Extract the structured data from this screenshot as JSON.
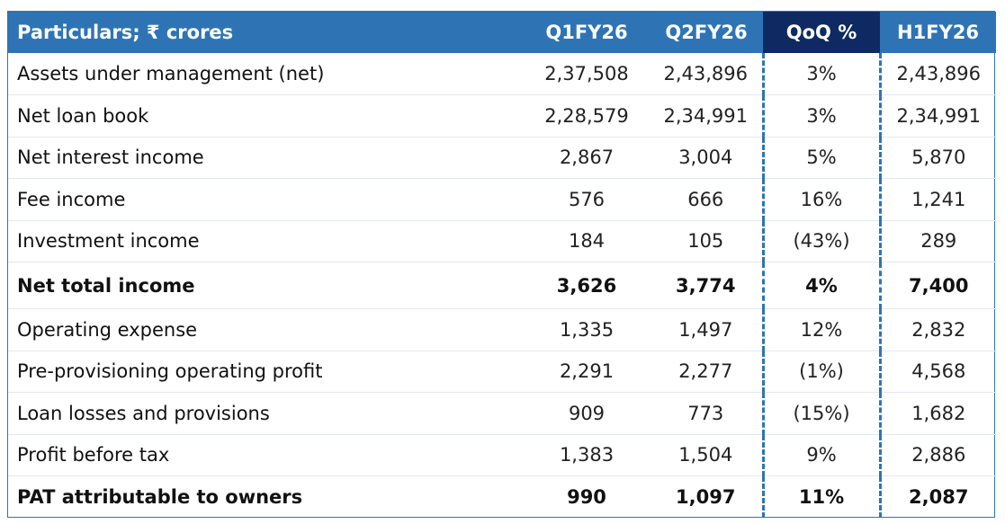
{
  "header": {
    "particulars": "Particulars; ₹ crores",
    "q1": "Q1FY26",
    "q2": "Q2FY26",
    "qoq": "QoQ %",
    "h1": "H1FY26"
  },
  "rows": [
    {
      "label": "Assets under management (net)",
      "q1": "2,37,508",
      "q2": "2,43,896",
      "qoq": "3%",
      "h1": "2,43,896"
    },
    {
      "label": "Net loan book",
      "q1": "2,28,579",
      "q2": "2,34,991",
      "qoq": "3%",
      "h1": "2,34,991"
    },
    {
      "label": "Net interest income",
      "q1": "2,867",
      "q2": "3,004",
      "qoq": "5%",
      "h1": "5,870"
    },
    {
      "label": "Fee income",
      "q1": "576",
      "q2": "666",
      "qoq": "16%",
      "h1": "1,241"
    },
    {
      "label": "Investment income",
      "q1": "184",
      "q2": "105",
      "qoq": "(43%)",
      "h1": "289"
    },
    {
      "label": "Net total income",
      "q1": "3,626",
      "q2": "3,774",
      "qoq": "4%",
      "h1": "7,400"
    },
    {
      "label": "Operating expense",
      "q1": "1,335",
      "q2": "1,497",
      "qoq": "12%",
      "h1": "2,832"
    },
    {
      "label": "Pre-provisioning operating profit",
      "q1": "2,291",
      "q2": "2,277",
      "qoq": "(1%)",
      "h1": "4,568"
    },
    {
      "label": "Loan losses and provisions",
      "q1": "909",
      "q2": "773",
      "qoq": "(15%)",
      "h1": "1,682"
    },
    {
      "label": "Profit before tax",
      "q1": "1,383",
      "q2": "1,504",
      "qoq": "9%",
      "h1": "2,886"
    },
    {
      "label": "PAT attributable to owners",
      "q1": "990",
      "q2": "1,097",
      "qoq": "11%",
      "h1": "2,087"
    }
  ],
  "colors": {
    "header_bg": "#2e74b5",
    "qoq_header_bg": "#0f2a63",
    "dashed_border": "#2e74b5"
  }
}
